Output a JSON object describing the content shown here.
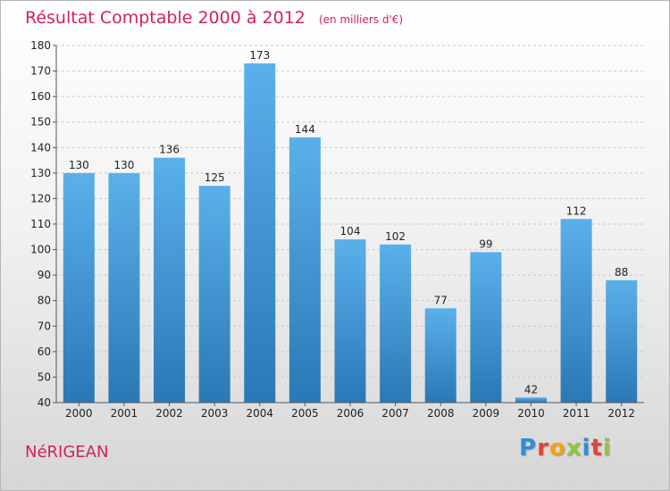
{
  "chart_data": {
    "type": "bar",
    "title": "Résultat Comptable 2000 à 2012",
    "unit": "(en milliers d'€)",
    "categories": [
      "2000",
      "2001",
      "2002",
      "2003",
      "2004",
      "2005",
      "2006",
      "2007",
      "2008",
      "2009",
      "2010",
      "2011",
      "2012"
    ],
    "values": [
      130,
      130,
      136,
      125,
      173,
      144,
      104,
      102,
      77,
      99,
      42,
      112,
      88
    ],
    "ylim": [
      40,
      180
    ],
    "yticks": [
      40,
      50,
      60,
      70,
      80,
      90,
      100,
      110,
      120,
      130,
      140,
      150,
      160,
      170,
      180
    ],
    "grid": true,
    "bar_color": "#4a9ede"
  },
  "commune": "NéRIGEAN",
  "logo": {
    "letters": [
      "P",
      "r",
      "o",
      "x",
      "i",
      "t",
      "i"
    ],
    "colors": [
      "#2f8fd6",
      "#e0443a",
      "#f2a21c",
      "#8cc63f",
      "#2f8fd6",
      "#e0443a",
      "#8cc63f"
    ]
  }
}
